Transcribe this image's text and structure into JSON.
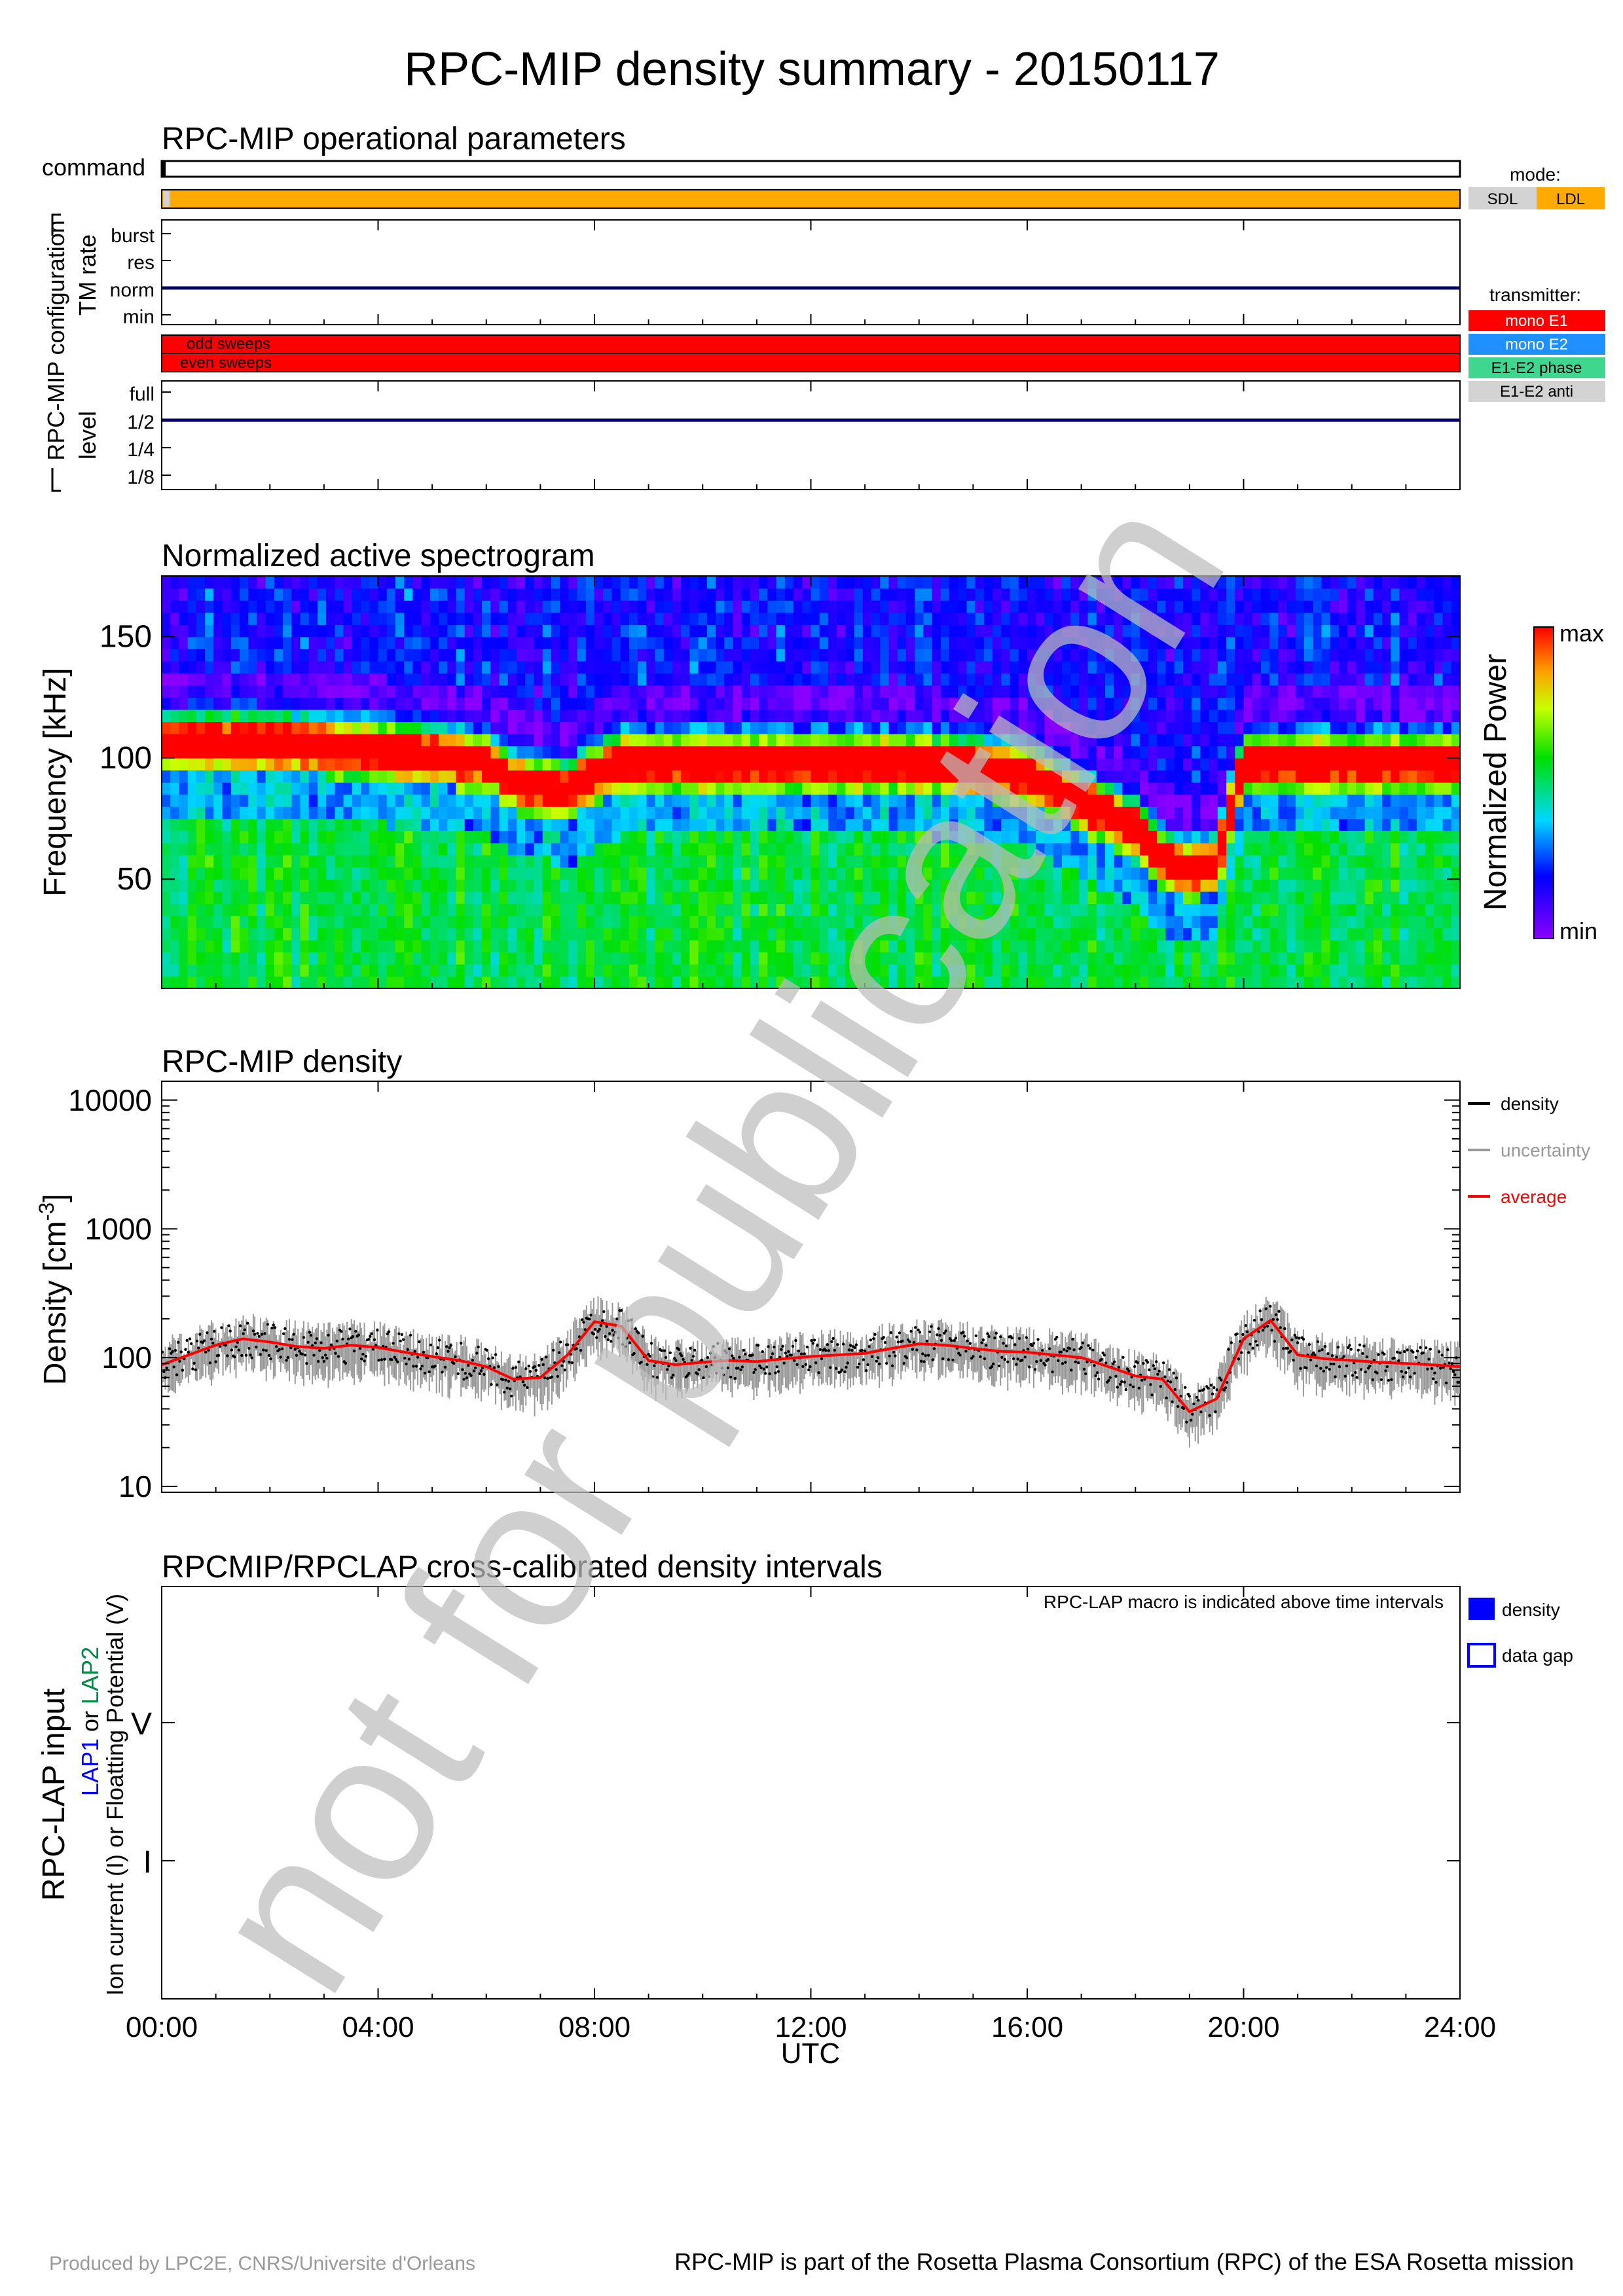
{
  "title": "RPC-MIP density summary - 20150117",
  "ops": {
    "title": "RPC-MIP operational parameters",
    "command_label": "command",
    "config_label": "RPC-MIP configuration",
    "tm_rate_label": "TM rate",
    "tm_rate_levels": [
      "burst",
      "res",
      "norm",
      "min"
    ],
    "tm_rate_value": "norm",
    "sweeps": [
      "odd sweeps",
      "even sweeps"
    ],
    "level_label": "level",
    "level_levels": [
      "full",
      "1/2",
      "1/4",
      "1/8"
    ],
    "level_value": "1/2",
    "mode_title": "mode:",
    "modes": [
      {
        "label": "SDL",
        "color": "#d3d3d3"
      },
      {
        "label": "LDL",
        "color": "#ffaa00"
      }
    ],
    "transmitter_title": "transmitter:",
    "transmitters": [
      {
        "label": "mono E1",
        "color": "#ff0000"
      },
      {
        "label": "mono E2",
        "color": "#1e90ff"
      },
      {
        "label": "E1-E2 phase",
        "color": "#3fd68f"
      },
      {
        "label": "E1-E2 anti",
        "color": "#d3d3d3"
      }
    ]
  },
  "spectrogram": {
    "title": "Normalized active spectrogram",
    "ylabel": "Frequency [kHz]",
    "yticks": [
      "50",
      "100",
      "150"
    ],
    "colorbar_label": "Normalized Power",
    "colorbar_max": "max",
    "colorbar_min": "min"
  },
  "density": {
    "title": "RPC-MIP density",
    "ylabel": "Density [cm",
    "ylabel_sup": "-3",
    "ylabel_end": "]",
    "yticks": [
      "10",
      "100",
      "1000",
      "10000"
    ],
    "legend": [
      {
        "label": "density",
        "color": "#000000"
      },
      {
        "label": "uncertainty",
        "color": "#999999"
      },
      {
        "label": "average",
        "color": "#ff0000"
      }
    ]
  },
  "lap": {
    "title": "RPCMIP/RPCLAP cross-calibrated density intervals",
    "note": "RPC-LAP macro is indicated above time intervals",
    "ylabel_main": "RPC-LAP input",
    "ylabel_lap1": "LAP1",
    "ylabel_or": " or ",
    "ylabel_lap2": "LAP2",
    "ylabel_sub": "Ion current (I) or Floatting Potential (V)",
    "ytick_v": "V",
    "ytick_i": "I",
    "legend": [
      {
        "label": "density",
        "color": "#0000ff"
      },
      {
        "label": "data gap",
        "color": "#0000ff"
      }
    ]
  },
  "xaxis": {
    "ticks": [
      "00:00",
      "04:00",
      "08:00",
      "12:00",
      "16:00",
      "20:00",
      "24:00"
    ],
    "label": "UTC"
  },
  "watermark": "not for publication",
  "footer": {
    "left": "Produced by LPC2E, CNRS/Universite d'Orleans",
    "right": "RPC-MIP is part of the Rosetta Plasma Consortium (RPC) of the ESA Rosetta mission"
  },
  "chart_data": [
    {
      "type": "heatmap",
      "title": "Normalized active spectrogram",
      "xlabel": "",
      "ylabel": "Frequency [kHz]",
      "xlim": [
        0,
        24
      ],
      "ylim": [
        5,
        175
      ],
      "colorbar": [
        "min",
        "max"
      ],
      "x_hours": [
        0,
        2,
        4,
        6,
        6.5,
        7.5,
        8,
        8.5,
        10,
        12,
        14,
        16,
        18,
        18.5,
        19,
        19.5,
        20,
        21,
        22,
        24
      ],
      "peak_frequency_kHz": [
        108,
        108,
        105,
        100,
        92,
        88,
        95,
        100,
        100,
        100,
        100,
        95,
        72,
        60,
        55,
        58,
        100,
        100,
        100,
        100
      ]
    },
    {
      "type": "line",
      "title": "RPC-MIP density",
      "xlabel": "",
      "ylabel": "Density [cm-3]",
      "yscale": "log",
      "xlim": [
        0,
        24
      ],
      "ylim": [
        9,
        14000
      ],
      "series": [
        {
          "name": "average",
          "x": [
            0,
            0.5,
            1,
            1.5,
            2,
            2.5,
            3,
            3.5,
            4,
            4.5,
            5,
            5.5,
            6,
            6.5,
            7,
            7.5,
            8,
            8.5,
            9,
            9.5,
            10,
            10.5,
            11,
            11.5,
            12,
            12.5,
            13,
            13.5,
            14,
            14.5,
            15,
            15.5,
            16,
            16.5,
            17,
            17.5,
            18,
            18.5,
            19,
            19.5,
            20,
            20.5,
            21,
            21.5,
            22,
            22.5,
            23,
            23.5,
            24
          ],
          "y": [
            88,
            105,
            125,
            140,
            132,
            122,
            118,
            125,
            120,
            110,
            102,
            95,
            85,
            68,
            70,
            105,
            190,
            175,
            95,
            88,
            92,
            95,
            93,
            98,
            102,
            105,
            108,
            118,
            128,
            125,
            118,
            112,
            110,
            105,
            100,
            85,
            72,
            68,
            38,
            48,
            140,
            195,
            105,
            98,
            95,
            92,
            90,
            88,
            85
          ]
        }
      ]
    }
  ]
}
